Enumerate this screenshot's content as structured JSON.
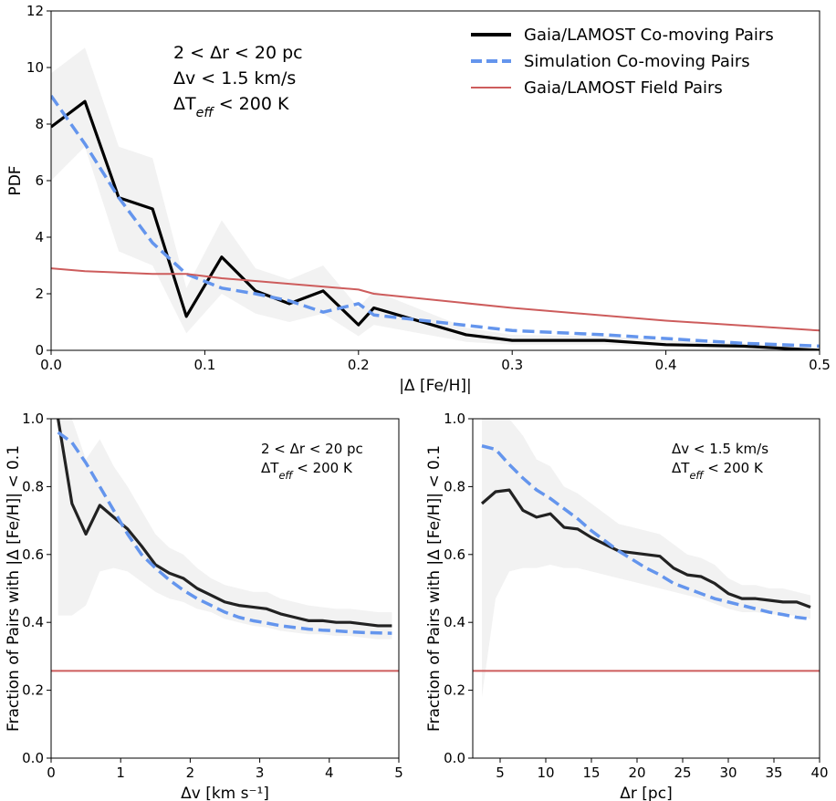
{
  "chart_data": [
    {
      "type": "line",
      "xlabel": "|Δ [Fe/H]|",
      "ylabel": "PDF",
      "xlim": [
        0,
        0.5
      ],
      "ylim": [
        0,
        12
      ],
      "xticks": [
        "0.0",
        "0.1",
        "0.2",
        "0.3",
        "0.4",
        "0.5"
      ],
      "yticks": [
        "0",
        "2",
        "4",
        "6",
        "8",
        "10",
        "12"
      ],
      "annotations": [
        "2 < Δr < 20 pc",
        "Δv < 1.5 km/s",
        "ΔT_eff < 200 K"
      ],
      "legend": "top-right",
      "series": [
        {
          "name": "Gaia/LAMOST Co-moving Pairs",
          "color": "#000000",
          "style": "solid",
          "x": [
            0.0,
            0.022,
            0.044,
            0.066,
            0.088,
            0.111,
            0.133,
            0.155,
            0.177,
            0.2,
            0.21,
            0.27,
            0.3,
            0.36,
            0.4,
            0.45,
            0.5
          ],
          "y": [
            7.9,
            8.8,
            5.4,
            5.0,
            1.2,
            3.3,
            2.1,
            1.65,
            2.1,
            0.9,
            1.5,
            0.55,
            0.35,
            0.35,
            0.2,
            0.15,
            0.0
          ],
          "band_low": [
            6.0,
            7.2,
            3.5,
            3.0,
            0.6,
            2.0,
            1.3,
            1.0,
            1.3,
            0.5,
            0.9,
            0.3,
            0.2,
            0.2,
            0.1,
            0.05,
            0.0
          ],
          "band_high": [
            9.8,
            10.7,
            7.2,
            6.8,
            2.2,
            4.6,
            2.9,
            2.5,
            3.0,
            1.5,
            2.1,
            0.8,
            0.55,
            0.5,
            0.35,
            0.25,
            0.1
          ]
        },
        {
          "name": "Simulation Co-moving Pairs",
          "color": "#6495ed",
          "style": "dashed",
          "x": [
            0.0,
            0.022,
            0.044,
            0.066,
            0.088,
            0.111,
            0.133,
            0.155,
            0.177,
            0.2,
            0.21,
            0.3,
            0.36,
            0.45,
            0.5
          ],
          "y": [
            9.0,
            7.3,
            5.4,
            3.8,
            2.7,
            2.2,
            2.0,
            1.75,
            1.35,
            1.65,
            1.25,
            0.7,
            0.55,
            0.25,
            0.15
          ]
        },
        {
          "name": "Gaia/LAMOST Field Pairs",
          "color": "#cd5c5c",
          "style": "solid",
          "x": [
            0.0,
            0.022,
            0.066,
            0.088,
            0.111,
            0.155,
            0.2,
            0.21,
            0.3,
            0.4,
            0.5
          ],
          "y": [
            2.9,
            2.8,
            2.7,
            2.7,
            2.55,
            2.35,
            2.15,
            2.0,
            1.5,
            1.05,
            0.7
          ]
        }
      ]
    },
    {
      "type": "line",
      "xlabel": "Δv [km s⁻¹]",
      "ylabel": "Fraction of Pairs with |Δ [Fe/H]| < 0.1",
      "xlim": [
        0,
        5
      ],
      "ylim": [
        0,
        1
      ],
      "xticks": [
        "0",
        "1",
        "2",
        "3",
        "4",
        "5"
      ],
      "yticks": [
        "0.0",
        "0.2",
        "0.4",
        "0.6",
        "0.8",
        "1.0"
      ],
      "annotations": [
        "2 < Δr < 20 pc",
        "ΔT_eff < 200 K"
      ],
      "series": [
        {
          "name": "Gaia/LAMOST Co-moving Pairs",
          "color": "#222222",
          "style": "solid",
          "x": [
            0.1,
            0.3,
            0.5,
            0.7,
            0.9,
            1.1,
            1.3,
            1.5,
            1.7,
            1.9,
            2.1,
            2.3,
            2.5,
            2.7,
            2.9,
            3.1,
            3.3,
            3.5,
            3.7,
            3.9,
            4.1,
            4.3,
            4.5,
            4.7,
            4.9
          ],
          "y": [
            1.0,
            0.75,
            0.66,
            0.745,
            0.71,
            0.675,
            0.625,
            0.57,
            0.545,
            0.53,
            0.5,
            0.48,
            0.46,
            0.45,
            0.445,
            0.44,
            0.425,
            0.415,
            0.405,
            0.405,
            0.4,
            0.4,
            0.395,
            0.39,
            0.39
          ],
          "band_low": [
            0.42,
            0.42,
            0.45,
            0.55,
            0.56,
            0.55,
            0.52,
            0.49,
            0.47,
            0.46,
            0.44,
            0.43,
            0.41,
            0.4,
            0.39,
            0.385,
            0.375,
            0.37,
            0.365,
            0.365,
            0.36,
            0.36,
            0.355,
            0.35,
            0.35
          ],
          "band_high": [
            1.0,
            1.0,
            0.88,
            0.94,
            0.86,
            0.8,
            0.73,
            0.66,
            0.62,
            0.6,
            0.56,
            0.53,
            0.51,
            0.5,
            0.49,
            0.49,
            0.47,
            0.46,
            0.45,
            0.445,
            0.44,
            0.44,
            0.435,
            0.43,
            0.43
          ]
        },
        {
          "name": "Simulation Co-moving Pairs",
          "color": "#6495ed",
          "style": "dashed",
          "x": [
            0.1,
            0.3,
            0.5,
            0.7,
            0.9,
            1.1,
            1.3,
            1.5,
            1.7,
            1.9,
            2.1,
            2.3,
            2.5,
            2.7,
            2.9,
            3.1,
            3.3,
            3.5,
            3.7,
            3.9,
            4.1,
            4.3,
            4.5,
            4.7,
            4.9
          ],
          "y": [
            0.96,
            0.93,
            0.87,
            0.8,
            0.73,
            0.66,
            0.6,
            0.56,
            0.525,
            0.495,
            0.47,
            0.45,
            0.43,
            0.415,
            0.405,
            0.398,
            0.39,
            0.385,
            0.38,
            0.377,
            0.375,
            0.372,
            0.37,
            0.369,
            0.368
          ]
        },
        {
          "name": "Gaia/LAMOST Field Pairs",
          "color": "#cd5c5c",
          "style": "solid",
          "x": [
            0,
            5
          ],
          "y": [
            0.257,
            0.257
          ]
        }
      ]
    },
    {
      "type": "line",
      "xlabel": "Δr [pc]",
      "ylabel": "Fraction of Pairs with |Δ [Fe/H]| < 0.1",
      "xlim": [
        2,
        40
      ],
      "ylim": [
        0,
        1
      ],
      "xticks": [
        "5",
        "10",
        "15",
        "20",
        "25",
        "30",
        "35",
        "40"
      ],
      "yticks": [
        "0.0",
        "0.2",
        "0.4",
        "0.6",
        "0.8",
        "1.0"
      ],
      "annotations": [
        "Δv < 1.5 km/s",
        "ΔT_eff < 200 K"
      ],
      "series": [
        {
          "name": "Gaia/LAMOST Co-moving Pairs",
          "color": "#222222",
          "style": "solid",
          "x": [
            3,
            4.5,
            6,
            7.5,
            9,
            10.5,
            12,
            13.5,
            15,
            16.5,
            18,
            19.5,
            21,
            22.5,
            24,
            25.5,
            27,
            28.5,
            30,
            31.5,
            33,
            34.5,
            36,
            37.5,
            39
          ],
          "y": [
            0.75,
            0.785,
            0.79,
            0.73,
            0.71,
            0.72,
            0.68,
            0.675,
            0.65,
            0.63,
            0.61,
            0.605,
            0.6,
            0.595,
            0.56,
            0.54,
            0.535,
            0.515,
            0.485,
            0.47,
            0.47,
            0.465,
            0.46,
            0.46,
            0.445
          ],
          "band_low": [
            0.18,
            0.47,
            0.55,
            0.56,
            0.56,
            0.57,
            0.56,
            0.56,
            0.55,
            0.54,
            0.53,
            0.52,
            0.51,
            0.5,
            0.49,
            0.48,
            0.47,
            0.455,
            0.44,
            0.43,
            0.43,
            0.425,
            0.42,
            0.42,
            0.41
          ],
          "band_high": [
            1.0,
            1.0,
            1.0,
            0.95,
            0.88,
            0.86,
            0.8,
            0.78,
            0.75,
            0.72,
            0.69,
            0.68,
            0.67,
            0.66,
            0.63,
            0.6,
            0.59,
            0.57,
            0.53,
            0.51,
            0.51,
            0.5,
            0.5,
            0.49,
            0.48
          ]
        },
        {
          "name": "Simulation Co-moving Pairs",
          "color": "#6495ed",
          "style": "dashed",
          "x": [
            3,
            4.5,
            6,
            7.5,
            9,
            10.5,
            12,
            13.5,
            15,
            16.5,
            18,
            19.5,
            21,
            22.5,
            24,
            25.5,
            27,
            28.5,
            30,
            31.5,
            33,
            34.5,
            36,
            37.5,
            39
          ],
          "y": [
            0.92,
            0.91,
            0.865,
            0.825,
            0.79,
            0.765,
            0.735,
            0.705,
            0.67,
            0.64,
            0.61,
            0.585,
            0.56,
            0.54,
            0.515,
            0.5,
            0.485,
            0.47,
            0.46,
            0.45,
            0.44,
            0.43,
            0.423,
            0.415,
            0.41
          ]
        },
        {
          "name": "Gaia/LAMOST Field Pairs",
          "color": "#cd5c5c",
          "style": "solid",
          "x": [
            2,
            40
          ],
          "y": [
            0.257,
            0.257
          ]
        }
      ]
    }
  ]
}
